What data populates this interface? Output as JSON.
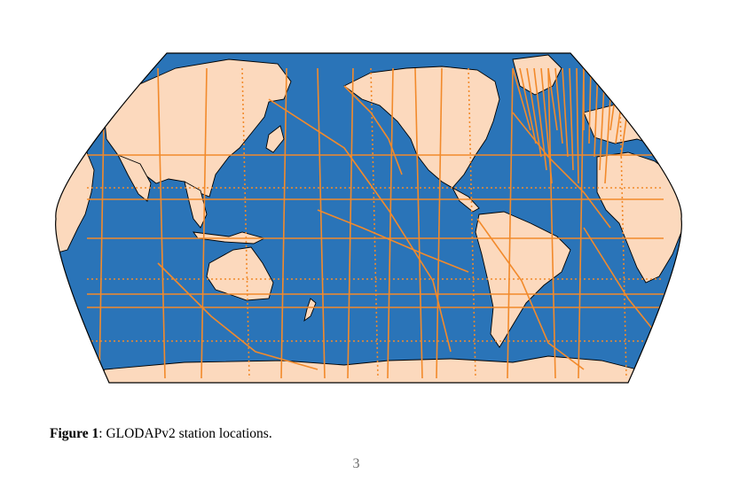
{
  "figure": {
    "caption_label": "Figure 1",
    "caption_separator": ": ",
    "caption_text": "GLODAPv2 station locations.",
    "colors": {
      "ocean": "#2a74b8",
      "land": "#fcd9bd",
      "stations": "#f28a2b",
      "coastline": "#000000"
    },
    "projection": "Robinson",
    "map_center": "Pacific"
  },
  "page": {
    "number": "3"
  }
}
